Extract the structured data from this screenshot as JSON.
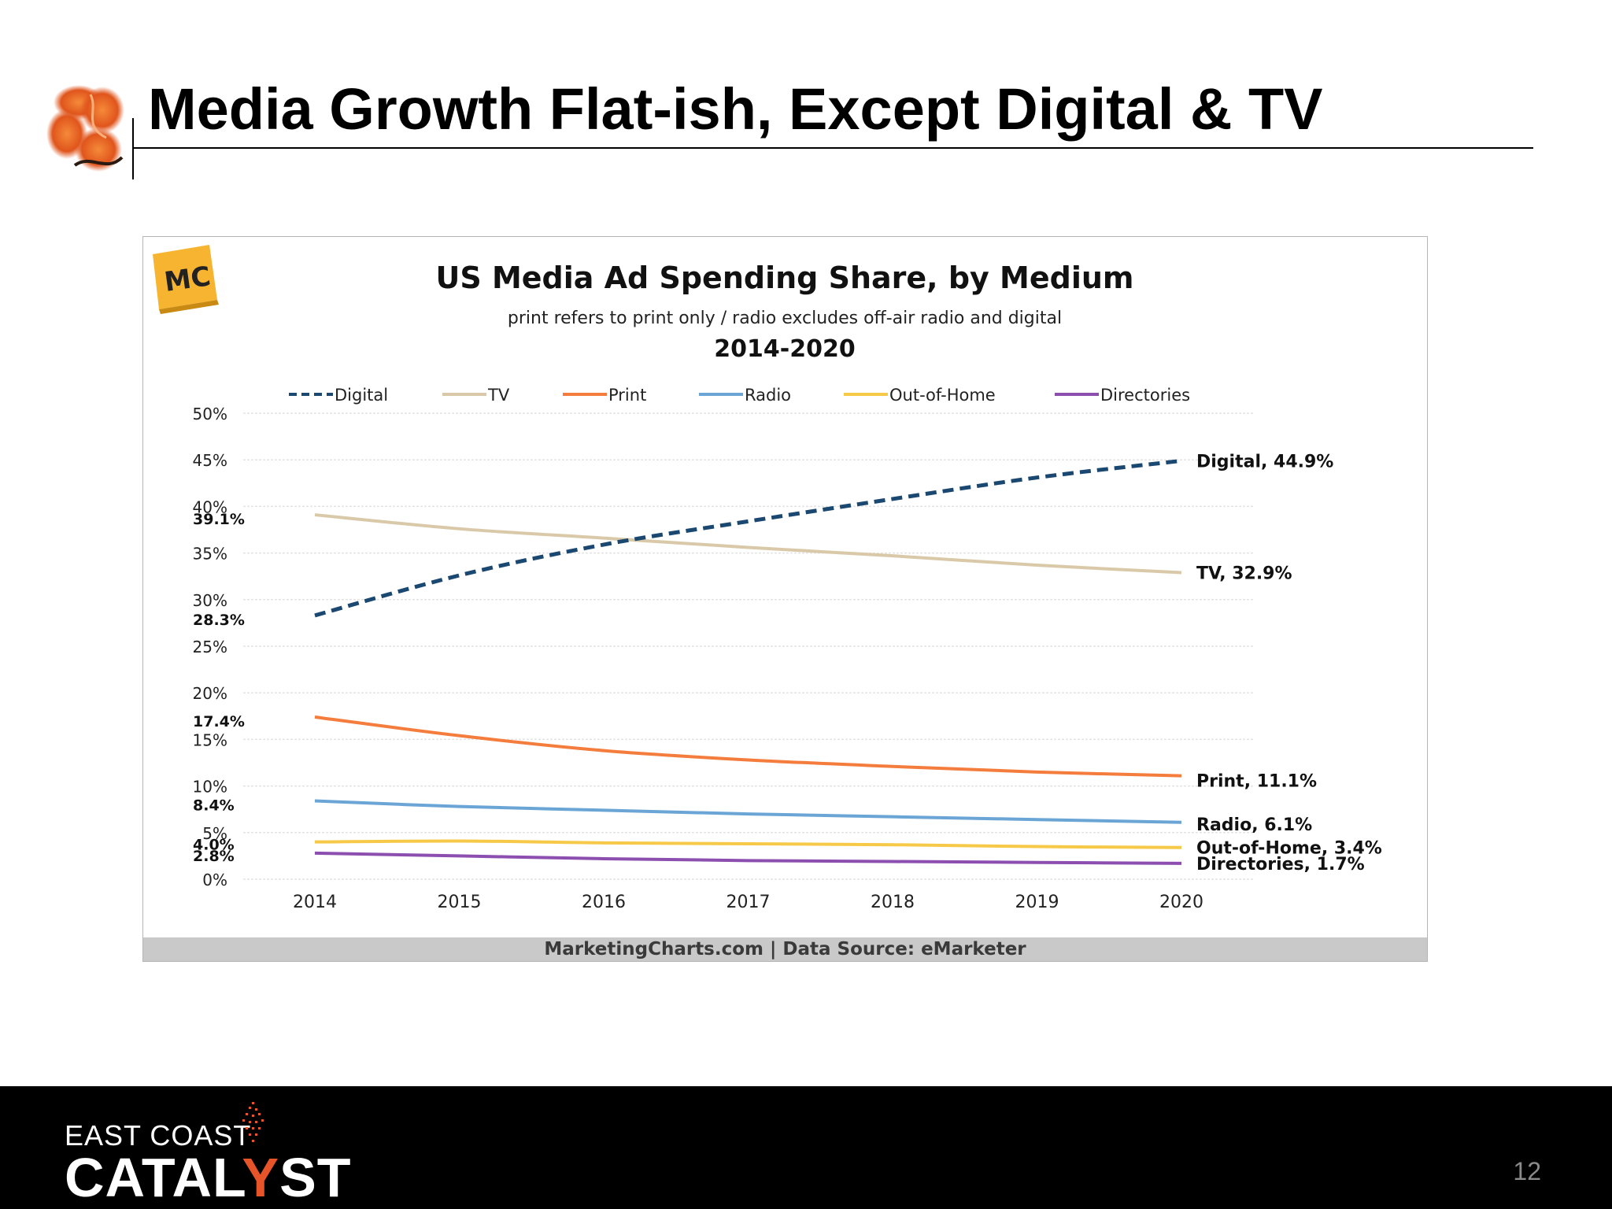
{
  "slide": {
    "title": "Media Growth Flat-ish, Except Digital & TV",
    "page_number": "12"
  },
  "brand": {
    "line1": "EAST COAST",
    "line2_a": "CATAL",
    "line2_b": "Y",
    "line2_c": "ST",
    "accent_color": "#e8542a"
  },
  "chart_badge": "MC",
  "chart_source": "MarketingCharts.com | Data Source: eMarketer",
  "chart_data": {
    "type": "line",
    "title": "US Media Ad Spending Share, by Medium",
    "subtitle": "print refers to print only / radio excludes off-air radio and digital",
    "period": "2014-2020",
    "categories": [
      "2014",
      "2015",
      "2016",
      "2017",
      "2018",
      "2019",
      "2020"
    ],
    "y_ticks": [
      "50%",
      "45%",
      "40%",
      "35%",
      "30%",
      "25%",
      "20%",
      "15%",
      "10%",
      "5%",
      "0%"
    ],
    "ylim": [
      0,
      50
    ],
    "grid": true,
    "legend_position": "top",
    "series": [
      {
        "name": "Digital",
        "color": "#1b4870",
        "dashed": true,
        "values": [
          28.3,
          32.6,
          35.9,
          38.4,
          40.8,
          43.1,
          44.9
        ],
        "start_label": "28.3%",
        "end_label": "Digital, 44.9%"
      },
      {
        "name": "TV",
        "color": "#d9c9a8",
        "dashed": false,
        "values": [
          39.1,
          37.6,
          36.6,
          35.6,
          34.7,
          33.7,
          32.9
        ],
        "start_label": "39.1%",
        "end_label": "TV, 32.9%"
      },
      {
        "name": "Print",
        "color": "#f47c3c",
        "dashed": false,
        "values": [
          17.4,
          15.4,
          13.8,
          12.8,
          12.1,
          11.5,
          11.1
        ],
        "start_label": "17.4%",
        "end_label": "Print, 11.1%"
      },
      {
        "name": "Radio",
        "color": "#6aa5d6",
        "dashed": false,
        "values": [
          8.4,
          7.8,
          7.4,
          7.0,
          6.7,
          6.4,
          6.1
        ],
        "start_label": "8.4%",
        "end_label": "Radio, 6.1%"
      },
      {
        "name": "Out-of-Home",
        "color": "#f7c948",
        "dashed": false,
        "values": [
          4.0,
          4.1,
          3.9,
          3.8,
          3.7,
          3.5,
          3.4
        ],
        "start_label": "4.0%",
        "end_label": "Out-of-Home, 3.4%"
      },
      {
        "name": "Directories",
        "color": "#8c4fb0",
        "dashed": false,
        "values": [
          2.8,
          2.5,
          2.2,
          2.0,
          1.9,
          1.8,
          1.7
        ],
        "start_label": "2.8%",
        "end_label": "Directories, 1.7%"
      }
    ]
  }
}
